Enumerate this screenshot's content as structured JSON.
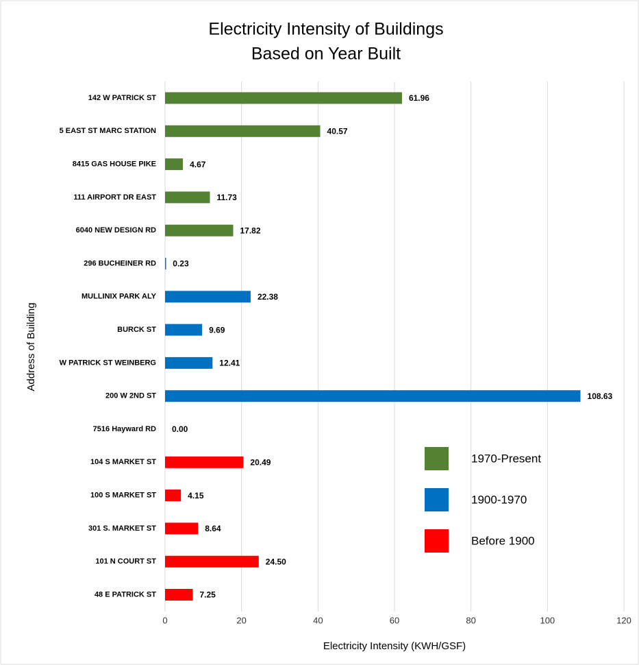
{
  "chart_data": {
    "type": "bar",
    "orientation": "horizontal",
    "title": [
      "Electricity Intensity of Buildings",
      "Based on Year Built"
    ],
    "x_label": "Electricity Intensity (KWH/GSF)",
    "y_label": "Address of Building",
    "categories": [
      "142 W PATRICK ST",
      "5 EAST ST MARC STATION",
      "8415 GAS HOUSE PIKE",
      "111 AIRPORT DR EAST",
      "6040 NEW DESIGN RD",
      "296 BUCHEINER RD",
      "MULLINIX PARK ALY",
      "BURCK ST",
      "W PATRICK ST WEINBERG",
      "200 W 2ND ST",
      "7516 Hayward RD",
      "104 S MARKET ST",
      "100 S MARKET ST",
      "301 S. MARKET ST",
      "101 N COURT ST",
      "48 E PATRICK ST"
    ],
    "series": [
      {
        "name": "1970-Present",
        "color": "#548235",
        "values": [
          61.96,
          40.57,
          4.67,
          11.73,
          17.82,
          null,
          null,
          null,
          null,
          null,
          null,
          null,
          null,
          null,
          null,
          null
        ],
        "value_labels": [
          "61.96",
          "40.57",
          "4.67",
          "11.73",
          "17.82",
          null,
          null,
          null,
          null,
          null,
          null,
          null,
          null,
          null,
          null,
          null
        ]
      },
      {
        "name": "1900-1970",
        "color": "#0070c0",
        "values": [
          null,
          null,
          null,
          null,
          null,
          0.23,
          22.38,
          9.69,
          12.41,
          108.63,
          null,
          null,
          null,
          null,
          null,
          null
        ],
        "value_labels": [
          null,
          null,
          null,
          null,
          null,
          "0.23",
          "22.38",
          "9.69",
          "12.41",
          "108.63",
          null,
          null,
          null,
          null,
          null,
          null
        ]
      },
      {
        "name": "Before 1900",
        "color": "#ff0000",
        "values": [
          null,
          null,
          null,
          null,
          null,
          null,
          null,
          null,
          null,
          null,
          0,
          20.49,
          4.15,
          8.64,
          24.5,
          7.25
        ],
        "value_labels": [
          null,
          null,
          null,
          null,
          null,
          null,
          null,
          null,
          null,
          null,
          "0.00",
          "20.49",
          "4.15",
          "8.64",
          "24.50",
          "7.25"
        ]
      }
    ],
    "xlim": [
      0,
      120
    ],
    "xticks": [
      0,
      20,
      40,
      60,
      80,
      100,
      120
    ],
    "grid": true,
    "legend": "lower right"
  }
}
